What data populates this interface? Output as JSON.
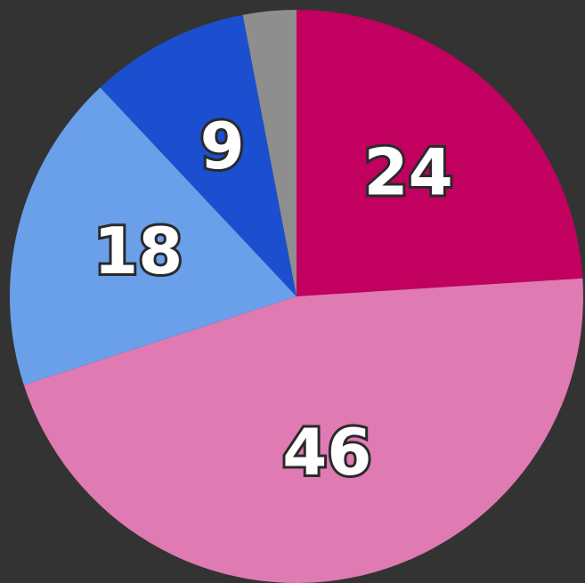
{
  "chart_data": {
    "type": "pie",
    "values": [
      24,
      46,
      18,
      9,
      3
    ],
    "colors": [
      "#c2005f",
      "#e07ab3",
      "#6a9fea",
      "#1b4fcf",
      "#8e8e8e"
    ],
    "start_angle": 0,
    "direction": "clockwise"
  }
}
